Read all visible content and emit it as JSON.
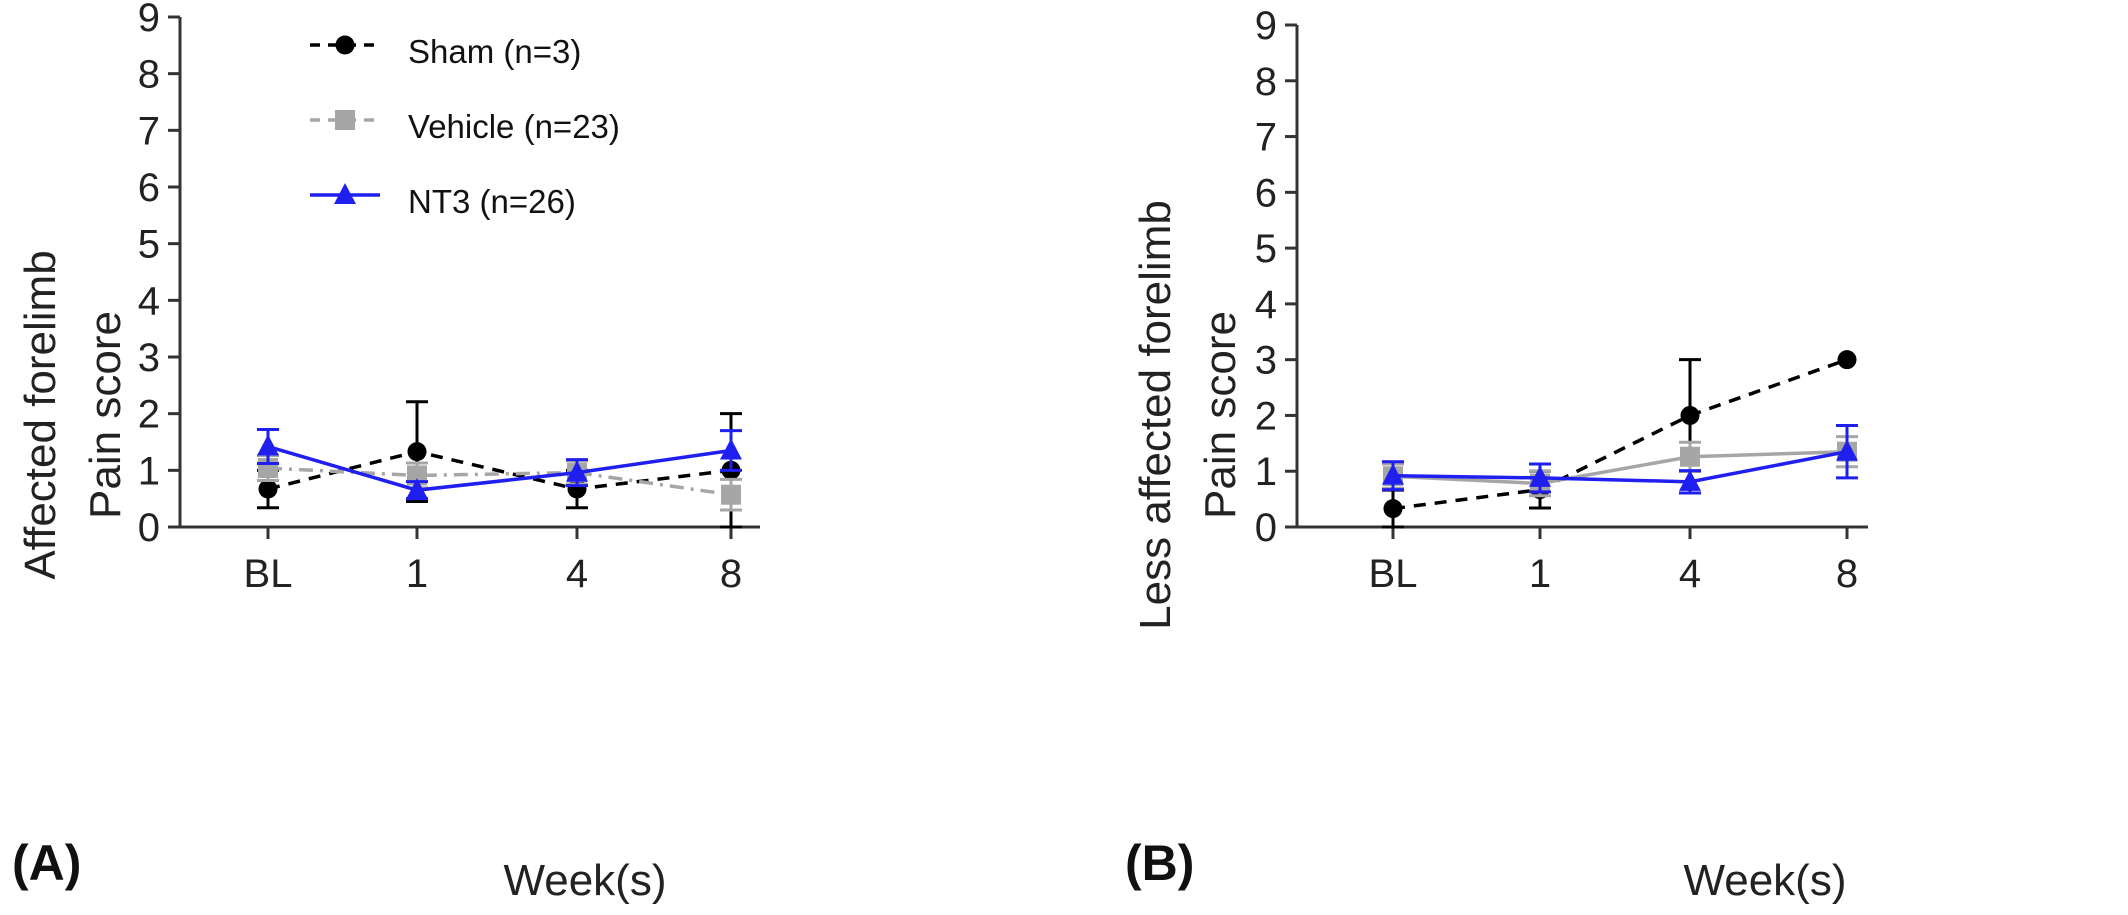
{
  "colors": {
    "sham": "#000000",
    "vehicle": "#a6a6a6",
    "nt3": "#1f1ff0",
    "axis": "#333333"
  },
  "legend": [
    {
      "label": "Sham (n=3)",
      "series": "sham"
    },
    {
      "label": "Vehicle (n=23)",
      "series": "vehicle"
    },
    {
      "label": "NT3 (n=26)",
      "series": "nt3"
    }
  ],
  "chart_data": [
    {
      "type": "line",
      "panel_label": "(A)",
      "ylabel_lines": [
        "Affected forelimb",
        "Pain score"
      ],
      "xlabel": "Week(s)",
      "categories": [
        "BL",
        "1",
        "4",
        "8"
      ],
      "ylim": [
        0,
        9
      ],
      "yticks": [
        "0",
        "1",
        "2",
        "3",
        "4",
        "5",
        "6",
        "7",
        "8",
        "9"
      ],
      "grid": false,
      "series": [
        {
          "name": "Sham (n=3)",
          "key": "sham",
          "marker": "circle",
          "dash": "dash",
          "values": [
            0.67,
            1.33,
            0.67,
            1.0
          ],
          "errors": [
            0.33,
            0.88,
            0.33,
            1.0
          ]
        },
        {
          "name": "Vehicle (n=23)",
          "key": "vehicle",
          "marker": "square",
          "dash": "dashdot",
          "values": [
            1.04,
            0.91,
            0.96,
            0.57
          ],
          "errors": [
            0.22,
            0.22,
            0.21,
            0.27
          ]
        },
        {
          "name": "NT3 (n=26)",
          "key": "nt3",
          "marker": "triangle",
          "dash": "solid",
          "values": [
            1.42,
            0.65,
            0.96,
            1.35
          ],
          "errors": [
            0.3,
            0.15,
            0.23,
            0.35
          ]
        }
      ]
    },
    {
      "type": "line",
      "panel_label": "(B)",
      "ylabel_lines": [
        "Less affected forelimb",
        "Pain score"
      ],
      "xlabel": "Week(s)",
      "categories": [
        "BL",
        "1",
        "4",
        "8"
      ],
      "ylim": [
        0,
        9
      ],
      "yticks": [
        "0",
        "1",
        "2",
        "3",
        "4",
        "5",
        "6",
        "7",
        "8",
        "9"
      ],
      "grid": false,
      "series": [
        {
          "name": "Sham (n=3)",
          "key": "sham",
          "marker": "circle",
          "dash": "dash",
          "values": [
            0.33,
            0.67,
            2.0,
            3.0
          ],
          "errors": [
            0.33,
            0.33,
            1.0,
            0
          ]
        },
        {
          "name": "Vehicle (n=23)",
          "key": "vehicle",
          "marker": "square",
          "dash": "solid",
          "values": [
            0.91,
            0.78,
            1.26,
            1.35
          ],
          "errors": [
            0.22,
            0.22,
            0.26,
            0.27
          ]
        },
        {
          "name": "NT3 (n=26)",
          "key": "nt3",
          "marker": "triangle",
          "dash": "solid",
          "values": [
            0.92,
            0.88,
            0.81,
            1.35
          ],
          "errors": [
            0.25,
            0.25,
            0.2,
            0.47
          ]
        }
      ]
    }
  ]
}
